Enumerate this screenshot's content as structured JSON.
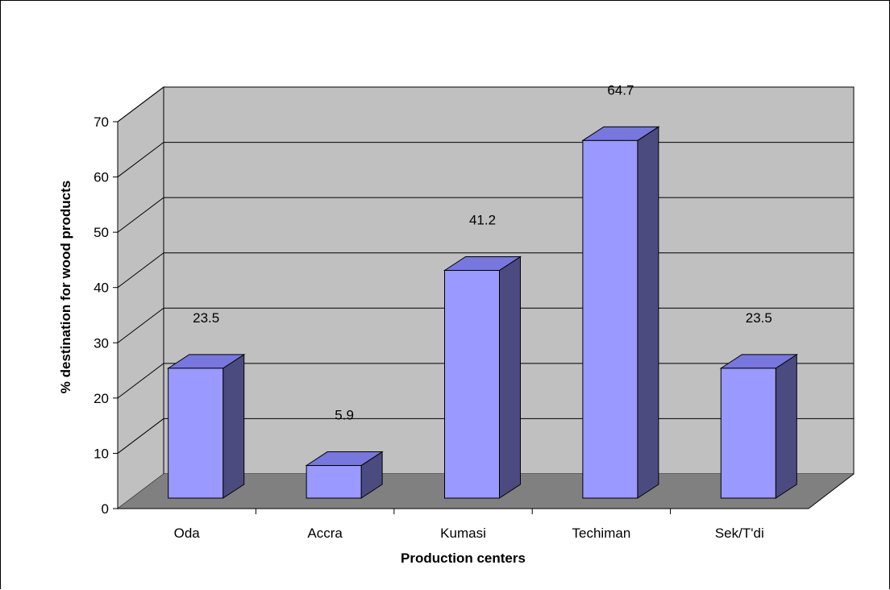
{
  "chart_data": {
    "type": "bar",
    "title": "",
    "xlabel": "Production centers",
    "ylabel": "% destination for wood products",
    "categories": [
      "Oda",
      "Accra",
      "Kumasi",
      "Techiman",
      "Sek/T'di"
    ],
    "values": [
      23.5,
      5.9,
      41.2,
      64.7,
      23.5
    ],
    "data_labels": [
      "23.5",
      "5.9",
      "41.2",
      "64.7",
      "23.5"
    ],
    "ylim": [
      0,
      70
    ],
    "yticks": [
      0,
      10,
      20,
      30,
      40,
      50,
      60,
      70
    ],
    "grid": true,
    "legend": "none",
    "style": "3d-column",
    "colors": {
      "bar_front": "#9999FF",
      "bar_top": "#7777DD",
      "bar_side": "#4B4B80",
      "back_wall": "#C0C0C0",
      "side_wall": "#C0C0C0",
      "floor": "#808080",
      "gridline": "#000000"
    }
  }
}
